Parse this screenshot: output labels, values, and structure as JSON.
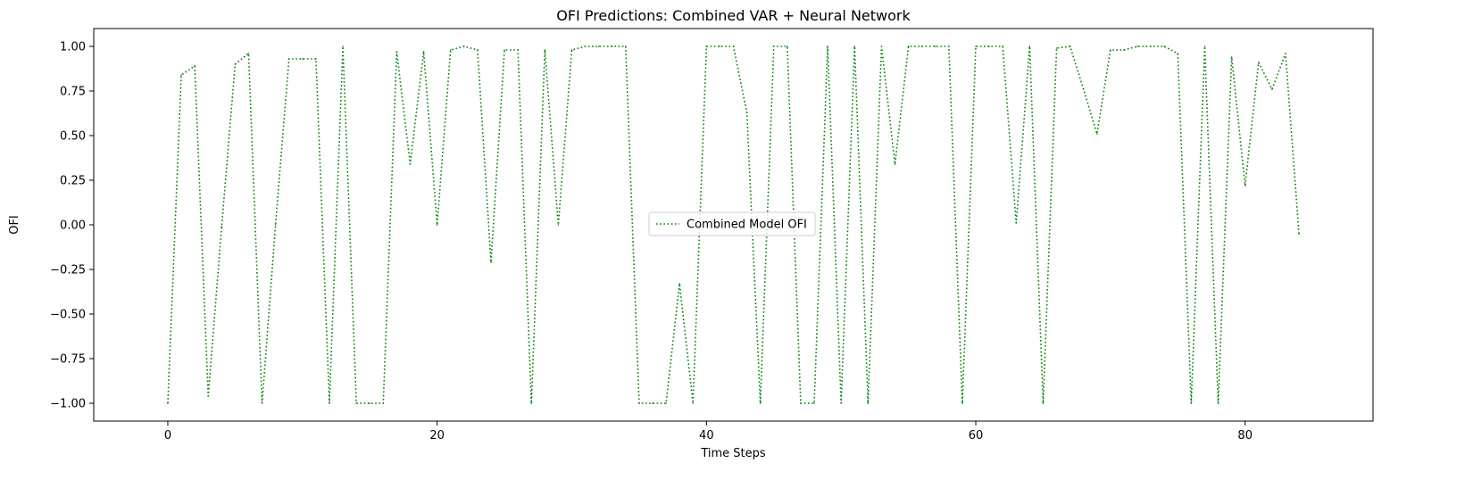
{
  "chart_data": {
    "type": "line",
    "title": "OFI Predictions: Combined VAR + Neural Network",
    "xlabel": "Time Steps",
    "ylabel": "OFI",
    "xlim": [
      -5.5,
      89.5
    ],
    "ylim": [
      -1.1,
      1.1
    ],
    "xticks": [
      0,
      20,
      40,
      60,
      80
    ],
    "yticks": [
      -1.0,
      -0.75,
      -0.5,
      -0.25,
      0.0,
      0.25,
      0.5,
      0.75,
      1.0
    ],
    "ytick_labels": [
      "−1.00",
      "−0.75",
      "−0.50",
      "−0.25",
      "0.00",
      "0.25",
      "0.50",
      "0.75",
      "1.00"
    ],
    "grid": false,
    "legend_position": "center",
    "series": [
      {
        "name": "Combined Model OFI",
        "color": "#008000",
        "line_style": "dotted",
        "x": [
          0,
          1,
          2,
          3,
          4,
          5,
          6,
          7,
          8,
          9,
          10,
          11,
          12,
          13,
          14,
          15,
          16,
          17,
          18,
          19,
          20,
          21,
          22,
          23,
          24,
          25,
          26,
          27,
          28,
          29,
          30,
          31,
          32,
          33,
          34,
          35,
          36,
          37,
          38,
          39,
          40,
          41,
          42,
          43,
          44,
          45,
          46,
          47,
          48,
          49,
          50,
          51,
          52,
          53,
          54,
          55,
          56,
          57,
          58,
          59,
          60,
          61,
          62,
          63,
          64,
          65,
          66,
          67,
          68,
          69,
          70,
          71,
          72,
          73,
          74,
          75,
          76,
          77,
          78,
          79,
          80,
          81,
          82,
          83,
          84
        ],
        "values": [
          -1.0,
          0.84,
          0.89,
          -0.96,
          -0.01,
          0.9,
          0.96,
          -1.0,
          0.0,
          0.93,
          0.93,
          0.93,
          -1.0,
          1.0,
          -1.0,
          -1.0,
          -1.0,
          0.97,
          0.34,
          0.97,
          0.0,
          0.98,
          1.0,
          0.98,
          -0.21,
          0.98,
          0.98,
          -1.0,
          0.98,
          0.0,
          0.98,
          1.0,
          1.0,
          1.0,
          1.0,
          -1.0,
          -1.0,
          -1.0,
          -0.33,
          -1.0,
          1.0,
          1.0,
          1.0,
          0.63,
          -1.0,
          1.0,
          1.0,
          -1.0,
          -1.0,
          1.0,
          -1.0,
          1.0,
          -1.0,
          1.0,
          0.34,
          1.0,
          1.0,
          1.0,
          1.0,
          -1.0,
          1.0,
          1.0,
          1.0,
          0.01,
          1.0,
          -1.0,
          0.99,
          1.0,
          0.76,
          0.51,
          0.98,
          0.98,
          1.0,
          1.0,
          1.0,
          0.96,
          -1.0,
          1.0,
          -1.0,
          0.94,
          0.22,
          0.91,
          0.76,
          0.96,
          -0.05
        ]
      }
    ]
  }
}
